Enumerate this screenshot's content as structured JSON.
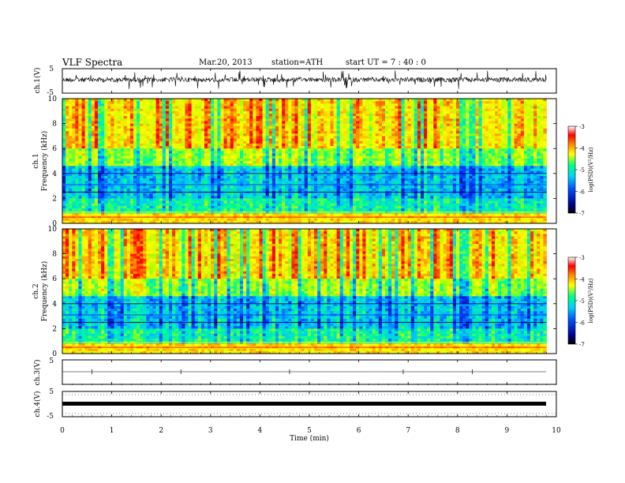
{
  "header": {
    "title": "VLF  Spectra",
    "date": "Mar.20, 2013",
    "station": "station=ATH",
    "start": "start  UT  =   7 : 40 : 0"
  },
  "chart_data": [
    {
      "type": "line",
      "name": "ch1 waveform",
      "ylabel": "ch.1(V)",
      "ylim": [
        -5,
        5
      ],
      "yticks": [
        "5",
        "-5"
      ],
      "xlim": [
        0,
        10
      ],
      "colors": [
        "#000000"
      ]
    },
    {
      "type": "heatmap",
      "name": "ch1 spectrogram",
      "ylabel_top": "ch.1",
      "ylabel": "Frequency  (kHz)",
      "ylim": [
        0,
        10
      ],
      "yticks": [
        "0",
        "2",
        "4",
        "6",
        "8",
        "10"
      ],
      "colorbar": {
        "label": "log(PSD)(V²/Hz)",
        "range": [
          -7,
          -3
        ],
        "ticks": [
          "-3",
          "-4",
          "-5",
          "-6",
          "-7"
        ],
        "colors": [
          "#000000",
          "#0000c8",
          "#00a0ff",
          "#00ff80",
          "#ffff00",
          "#ff8000",
          "#ff0000",
          "#ffffff"
        ]
      }
    },
    {
      "type": "heatmap",
      "name": "ch2 spectrogram",
      "ylabel_top": "ch.2",
      "ylabel": "Frequency  (kHz)",
      "ylim": [
        0,
        10
      ],
      "yticks": [
        "0",
        "2",
        "4",
        "6",
        "8",
        "10"
      ],
      "colorbar": {
        "label": "log(PSD)(V²/Hz)",
        "range": [
          -7,
          -3
        ],
        "ticks": [
          "-3",
          "-4",
          "-5",
          "-6",
          "-7"
        ]
      }
    },
    {
      "type": "line",
      "name": "ch3 waveform",
      "ylabel": "ch.3(V)",
      "ylim": [
        -5,
        5
      ],
      "yticks": [
        "5"
      ],
      "xlim": [
        0,
        10
      ]
    },
    {
      "type": "line",
      "name": "ch4 waveform",
      "ylabel": "ch.4(V)",
      "ylim": [
        -5,
        5
      ],
      "yticks": [
        "5",
        "-5"
      ],
      "xlim": [
        0,
        10
      ]
    }
  ],
  "xaxis": {
    "label": "Time  (min)",
    "ticks": [
      "0",
      "1",
      "2",
      "3",
      "4",
      "5",
      "6",
      "7",
      "8",
      "9",
      "10"
    ],
    "range": [
      0,
      10
    ],
    "data_end": 9.8
  }
}
